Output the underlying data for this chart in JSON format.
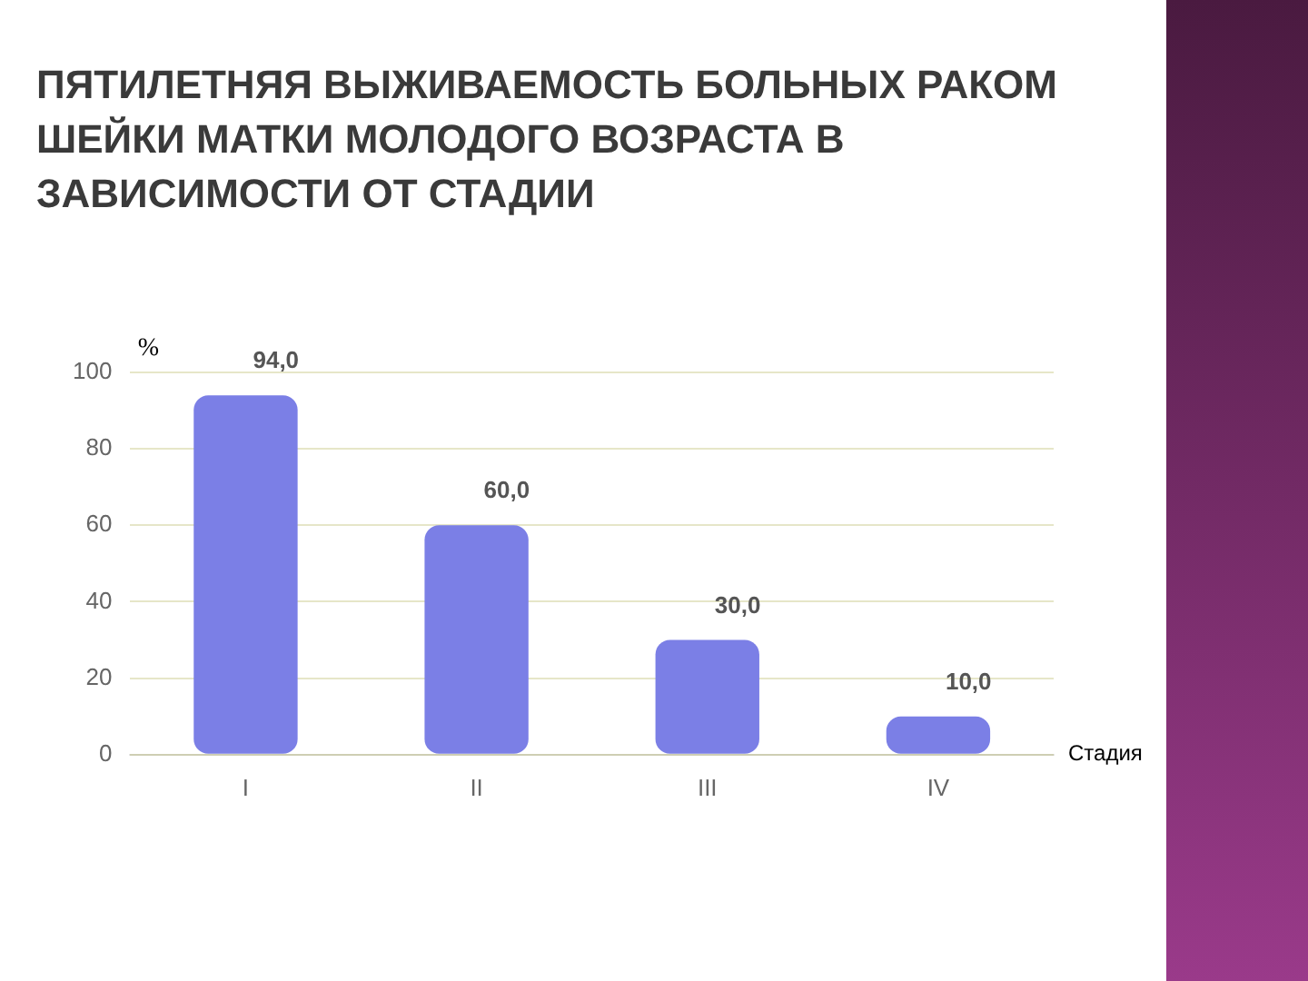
{
  "chart_data": {
    "type": "bar",
    "title": "ПЯТИЛЕТНЯЯ ВЫЖИВАЕМОСТЬ БОЛЬНЫХ РАКОМ ШЕЙКИ МАТКИ МОЛОДОГО ВОЗРАСТА В ЗАВИСИМОСТИ ОТ СТАДИИ",
    "xlabel": "Стадия",
    "ylabel": "%",
    "categories": [
      "I",
      "II",
      "III",
      "IV"
    ],
    "values": [
      94.0,
      60.0,
      30.0,
      10.0
    ],
    "value_labels": [
      "94,0",
      "60,0",
      "30,0",
      "10,0"
    ],
    "color": "#7b7fe6",
    "ylim": [
      0,
      100
    ],
    "yticks": [
      0,
      20,
      40,
      60,
      80,
      100
    ],
    "grid": "y",
    "legend": false
  }
}
